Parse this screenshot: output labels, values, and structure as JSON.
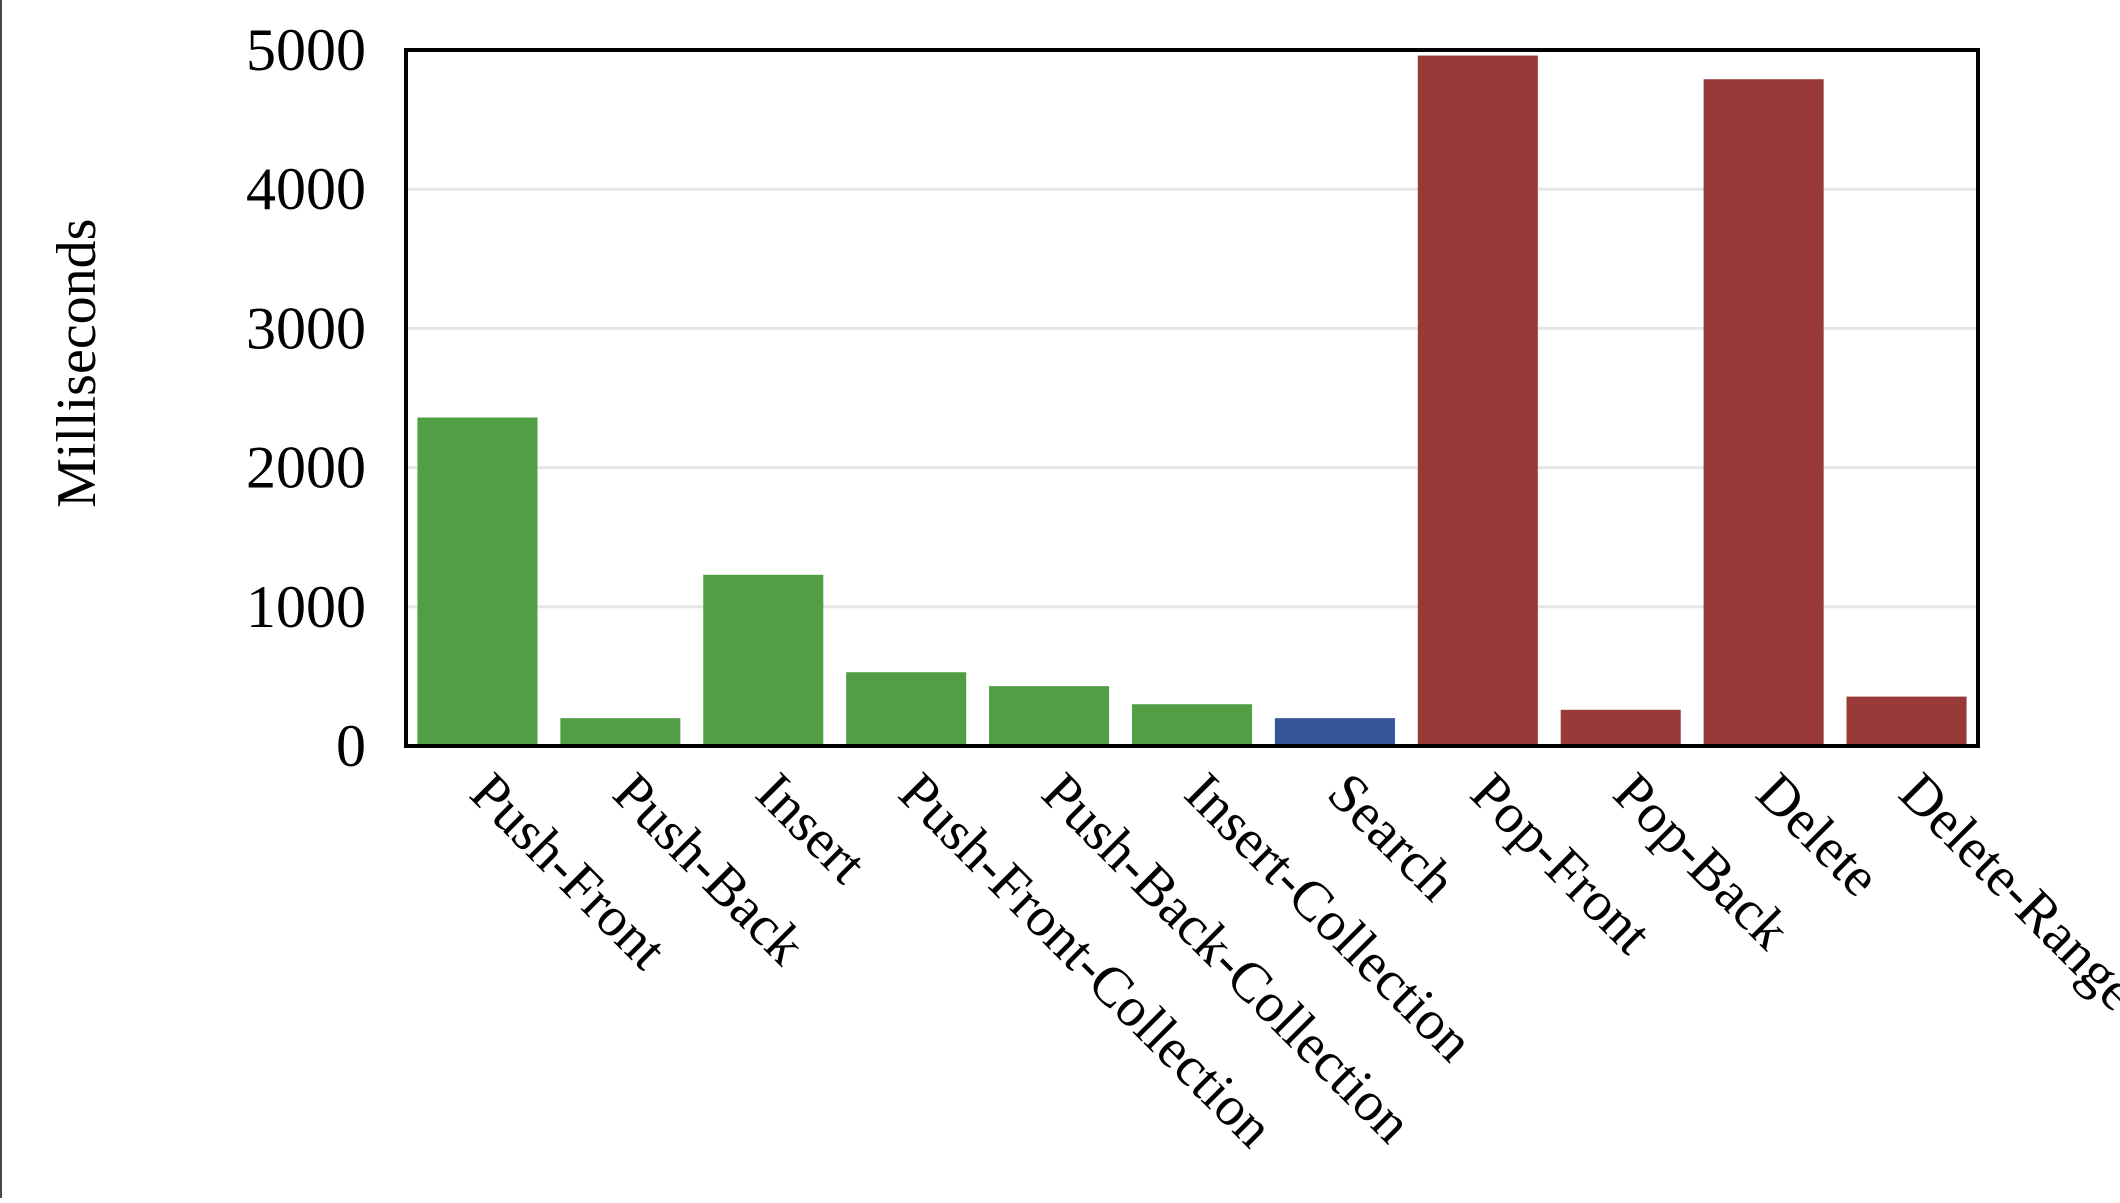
{
  "chart_data": {
    "type": "bar",
    "title": "",
    "xlabel": "",
    "ylabel": "Milliseconds",
    "ylim": [
      0,
      5000
    ],
    "yticks": [
      0,
      1000,
      2000,
      3000,
      4000,
      5000
    ],
    "grid": "horizontal",
    "categories": [
      "Push-Front",
      "Push-Back",
      "Insert",
      "Push-Front-Collection",
      "Push-Back-Collection",
      "Insert-Collection",
      "Search",
      "Pop-Front",
      "Pop-Back",
      "Delete",
      "Delete-Range"
    ],
    "values": [
      2360,
      200,
      1230,
      530,
      430,
      300,
      200,
      4960,
      260,
      4790,
      355
    ],
    "colors": [
      "#519e45",
      "#519e45",
      "#519e45",
      "#519e45",
      "#519e45",
      "#519e45",
      "#34559a",
      "#983b38",
      "#983b38",
      "#983b38",
      "#983b38"
    ]
  }
}
